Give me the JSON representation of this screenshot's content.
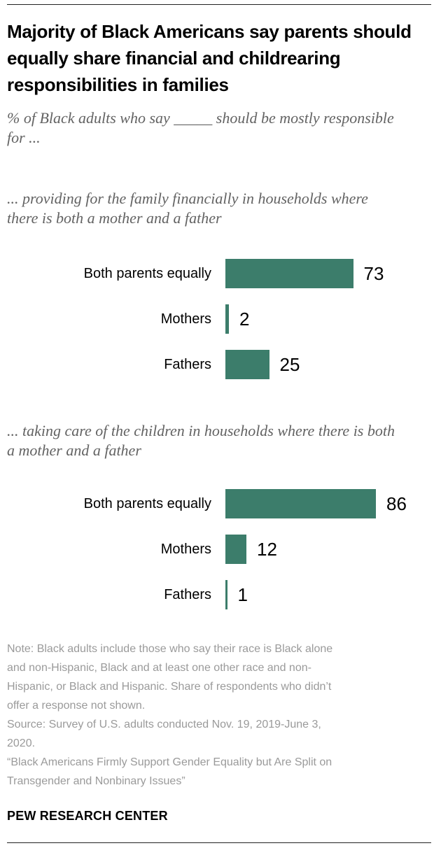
{
  "header": {
    "title": "Majority of Black Americans say parents should equally share financial and childrearing responsibilities in families",
    "subtitle": "% of Black adults who say _____ should be mostly responsible for ..."
  },
  "chart_data": [
    {
      "type": "bar",
      "orientation": "horizontal",
      "title": "... providing for the family financially in households where there is both a mother and a father",
      "categories": [
        "Both parents equally",
        "Mothers",
        "Fathers"
      ],
      "values": [
        73,
        2,
        25
      ],
      "xlim": [
        0,
        100
      ],
      "bar_color": "#3C7D6B",
      "value_labels_shown": true,
      "grid": false,
      "axis_shown": false
    },
    {
      "type": "bar",
      "orientation": "horizontal",
      "title": "... taking care of the children in households where there is both a mother and a father",
      "categories": [
        "Both parents equally",
        "Mothers",
        "Fathers"
      ],
      "values": [
        86,
        12,
        1
      ],
      "xlim": [
        0,
        100
      ],
      "bar_color": "#3C7D6B",
      "value_labels_shown": true,
      "grid": false,
      "axis_shown": false
    }
  ],
  "footnote": {
    "lines": [
      "Note: Black adults include those who say their race is Black alone",
      "and non-Hispanic, Black and at least one other race and non-",
      "Hispanic, or Black and Hispanic. Share of respondents who didn’t",
      "offer a response not shown.",
      "Source: Survey of U.S. adults conducted Nov. 19, 2019-June 3,",
      "2020.",
      "“Black Americans Firmly Support Gender Equality but Are Split on",
      "Transgender and Nonbinary Issues”"
    ]
  },
  "footer": {
    "org": "PEW RESEARCH CENTER"
  },
  "colors": {
    "bar_green": "#3C7D6B",
    "heading_gray": "#636363",
    "note_gray": "#9A9A9A",
    "rule_black": "#222222"
  }
}
